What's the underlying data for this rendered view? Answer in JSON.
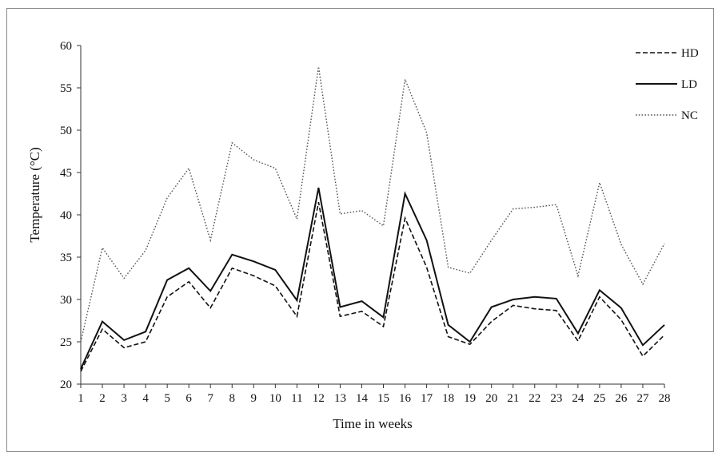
{
  "chart_data": {
    "type": "line",
    "title": "",
    "xlabel": "Time in weeks",
    "ylabel": "Temperature (°C)",
    "x": [
      1,
      2,
      3,
      4,
      5,
      6,
      7,
      8,
      9,
      10,
      11,
      12,
      13,
      14,
      15,
      16,
      17,
      18,
      19,
      20,
      21,
      22,
      23,
      24,
      25,
      26,
      27,
      28
    ],
    "xlim": [
      1,
      28
    ],
    "ylim": [
      20,
      60
    ],
    "yticks": [
      20,
      25,
      30,
      35,
      40,
      45,
      50,
      55,
      60
    ],
    "grid": false,
    "legend_position": "top-right",
    "series": [
      {
        "name": "HD",
        "style": "dashed",
        "color": "#111111",
        "values": [
          21.5,
          26.5,
          24.3,
          25.0,
          30.3,
          32.1,
          29.0,
          33.7,
          32.8,
          31.6,
          28.0,
          41.5,
          28.0,
          28.6,
          26.8,
          39.6,
          33.8,
          25.6,
          24.7,
          27.4,
          29.3,
          28.9,
          28.7,
          25.1,
          30.3,
          27.6,
          23.3,
          25.8
        ]
      },
      {
        "name": "LD",
        "style": "solid",
        "color": "#111111",
        "values": [
          21.8,
          27.4,
          25.2,
          26.2,
          32.3,
          33.7,
          31.0,
          35.3,
          34.5,
          33.5,
          29.9,
          43.2,
          29.1,
          29.8,
          27.9,
          42.5,
          37.0,
          27.0,
          25.0,
          29.1,
          30.0,
          30.3,
          30.1,
          26.0,
          31.1,
          29.0,
          24.6,
          27.0
        ]
      },
      {
        "name": "NC",
        "style": "dotted",
        "color": "#555555",
        "values": [
          25.0,
          36.1,
          32.5,
          35.8,
          42.0,
          45.5,
          37.0,
          48.5,
          46.5,
          45.5,
          39.5,
          57.5,
          40.1,
          40.5,
          38.7,
          56.0,
          49.7,
          33.8,
          33.1,
          37.0,
          40.7,
          40.9,
          41.2,
          32.8,
          43.8,
          36.5,
          31.8,
          36.6
        ]
      }
    ]
  }
}
